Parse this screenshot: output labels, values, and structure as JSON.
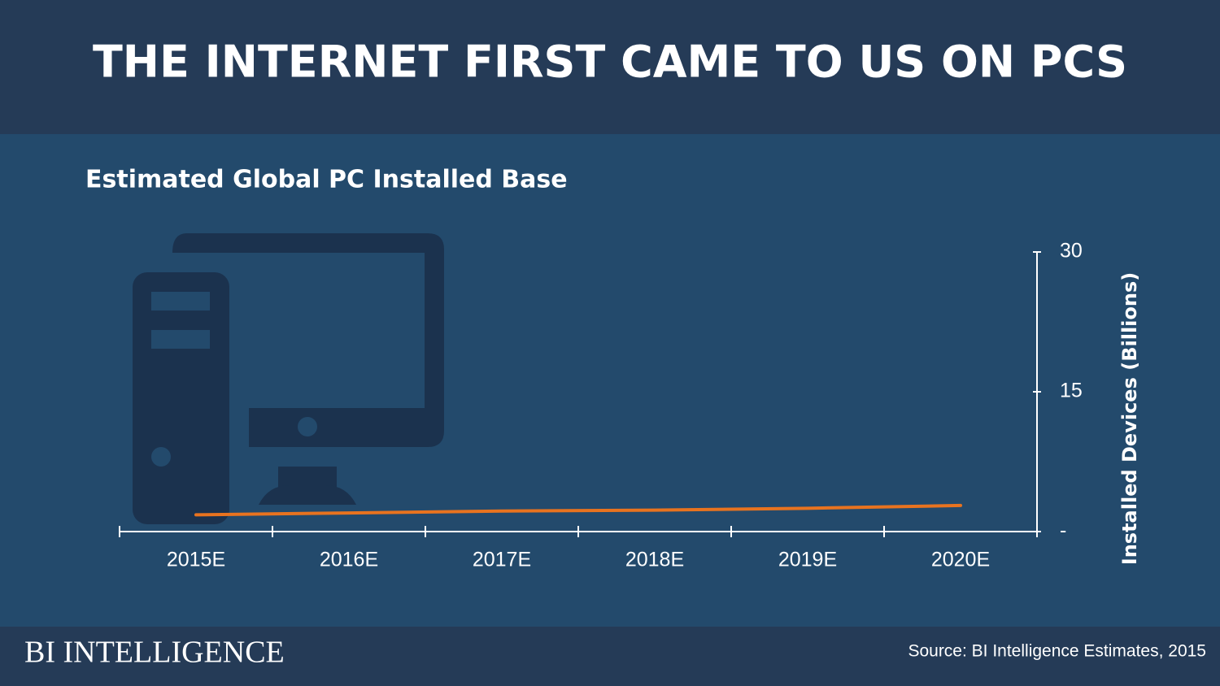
{
  "chart_data": {
    "type": "line",
    "title": "THE INTERNET FIRST CAME TO US ON PCS",
    "subtitle": "Estimated Global PC Installed Base",
    "categories": [
      "2015E",
      "2016E",
      "2017E",
      "2018E",
      "2019E",
      "2020E"
    ],
    "series": [
      {
        "name": "PC Installed Base",
        "color": "#e8731f",
        "values": [
          1.8,
          2.0,
          2.2,
          2.3,
          2.5,
          2.8
        ]
      }
    ],
    "y_label": "Installed Devices (Billions)",
    "ylim": [
      0,
      30
    ],
    "yticks": [
      {
        "value": 0,
        "label": "-"
      },
      15,
      30
    ],
    "source": "Source: BI Intelligence Estimates, 2015",
    "brand": "BI INTELLIGENCE"
  }
}
